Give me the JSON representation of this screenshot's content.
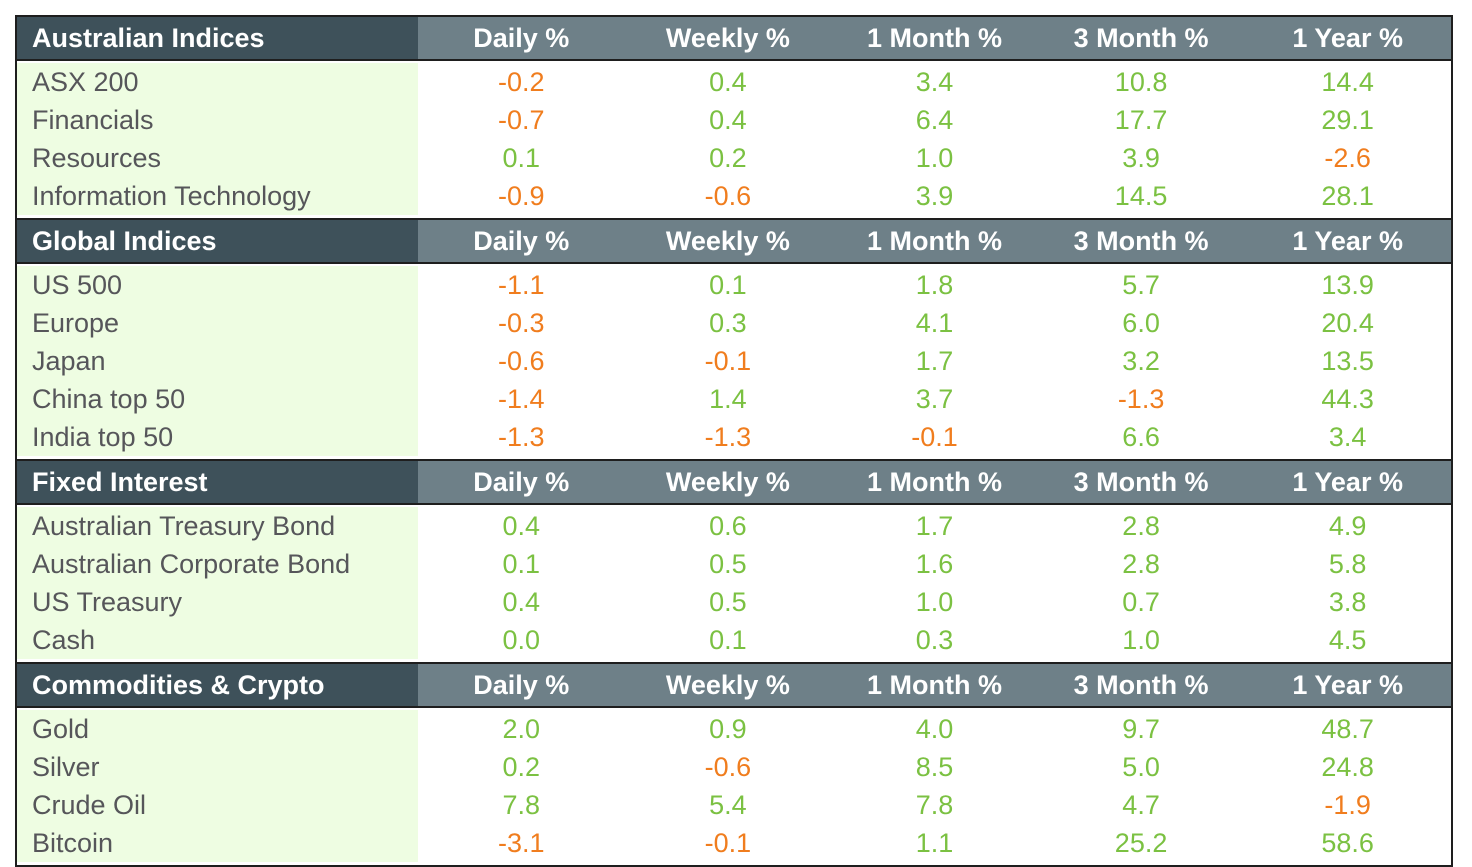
{
  "columns": [
    "Daily %",
    "Weekly %",
    "1 Month %",
    "3 Month %",
    "1 Year %"
  ],
  "colors": {
    "positive": "#7bc142",
    "negative": "#f07d1e",
    "header_dark": "#3e515a",
    "header_mid": "#6e8088",
    "label_bg": "#eefde2"
  },
  "sections": [
    {
      "title": "Australian Indices",
      "rows": [
        {
          "name": "ASX 200",
          "values": [
            "-0.2",
            "0.4",
            "3.4",
            "10.8",
            "14.4"
          ]
        },
        {
          "name": "Financials",
          "values": [
            "-0.7",
            "0.4",
            "6.4",
            "17.7",
            "29.1"
          ]
        },
        {
          "name": "Resources",
          "values": [
            "0.1",
            "0.2",
            "1.0",
            "3.9",
            "-2.6"
          ]
        },
        {
          "name": "Information Technology",
          "values": [
            "-0.9",
            "-0.6",
            "3.9",
            "14.5",
            "28.1"
          ]
        }
      ]
    },
    {
      "title": "Global Indices",
      "rows": [
        {
          "name": "US 500",
          "values": [
            "-1.1",
            "0.1",
            "1.8",
            "5.7",
            "13.9"
          ]
        },
        {
          "name": "Europe",
          "values": [
            "-0.3",
            "0.3",
            "4.1",
            "6.0",
            "20.4"
          ]
        },
        {
          "name": "Japan",
          "values": [
            "-0.6",
            "-0.1",
            "1.7",
            "3.2",
            "13.5"
          ]
        },
        {
          "name": "China top 50",
          "values": [
            "-1.4",
            "1.4",
            "3.7",
            "-1.3",
            "44.3"
          ]
        },
        {
          "name": "India top 50",
          "values": [
            "-1.3",
            "-1.3",
            "-0.1",
            "6.6",
            "3.4"
          ]
        }
      ]
    },
    {
      "title": "Fixed Interest",
      "rows": [
        {
          "name": "Australian Treasury Bond",
          "values": [
            "0.4",
            "0.6",
            "1.7",
            "2.8",
            "4.9"
          ]
        },
        {
          "name": "Australian Corporate Bond",
          "values": [
            "0.1",
            "0.5",
            "1.6",
            "2.8",
            "5.8"
          ]
        },
        {
          "name": "US Treasury",
          "values": [
            "0.4",
            "0.5",
            "1.0",
            "0.7",
            "3.8"
          ]
        },
        {
          "name": "Cash",
          "values": [
            "0.0",
            "0.1",
            "0.3",
            "1.0",
            "4.5"
          ]
        }
      ]
    },
    {
      "title": "Commodities & Crypto",
      "rows": [
        {
          "name": "Gold",
          "values": [
            "2.0",
            "0.9",
            "4.0",
            "9.7",
            "48.7"
          ]
        },
        {
          "name": "Silver",
          "values": [
            "0.2",
            "-0.6",
            "8.5",
            "5.0",
            "24.8"
          ]
        },
        {
          "name": "Crude Oil",
          "values": [
            "7.8",
            "5.4",
            "7.8",
            "4.7",
            "-1.9"
          ]
        },
        {
          "name": "Bitcoin",
          "values": [
            "-3.1",
            "-0.1",
            "1.1",
            "25.2",
            "58.6"
          ]
        }
      ]
    }
  ]
}
